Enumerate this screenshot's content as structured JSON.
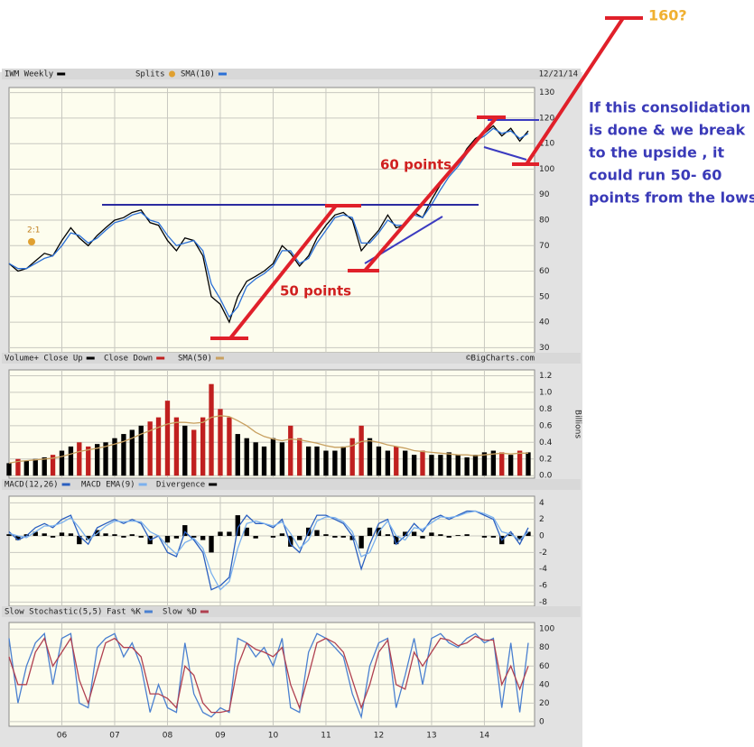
{
  "chart_data": [
    {
      "type": "line",
      "title": "IWM Weekly",
      "splits_label": "Splits",
      "split_marker": "2:1",
      "date_label": "12/21/14",
      "x": [
        2005,
        2005.17,
        2005.33,
        2005.5,
        2005.67,
        2005.83,
        2006,
        2006.17,
        2006.33,
        2006.5,
        2006.67,
        2006.83,
        2007,
        2007.17,
        2007.33,
        2007.5,
        2007.67,
        2007.83,
        2008,
        2008.17,
        2008.33,
        2008.5,
        2008.67,
        2008.83,
        2009,
        2009.17,
        2009.33,
        2009.5,
        2009.67,
        2009.83,
        2010,
        2010.17,
        2010.33,
        2010.5,
        2010.67,
        2010.83,
        2011,
        2011.17,
        2011.33,
        2011.5,
        2011.67,
        2011.83,
        2012,
        2012.17,
        2012.33,
        2012.5,
        2012.67,
        2012.83,
        2013,
        2013.17,
        2013.33,
        2013.5,
        2013.67,
        2013.83,
        2014,
        2014.17,
        2014.33,
        2014.5,
        2014.67,
        2014.83
      ],
      "series": [
        {
          "name": "IWM Weekly",
          "color": "#000000",
          "values": [
            63,
            60,
            61,
            64,
            67,
            66,
            72,
            77,
            73,
            70,
            74,
            77,
            80,
            81,
            83,
            84,
            79,
            78,
            72,
            68,
            73,
            72,
            66,
            50,
            47,
            40,
            50,
            56,
            58,
            60,
            63,
            70,
            67,
            62,
            66,
            73,
            78,
            82,
            83,
            80,
            68,
            72,
            76,
            82,
            77,
            78,
            83,
            81,
            88,
            94,
            98,
            102,
            108,
            112,
            114,
            117,
            113,
            116,
            111,
            115
          ]
        },
        {
          "name": "SMA(10)",
          "color": "#2a6fd6",
          "values": [
            63,
            61,
            61,
            63,
            65,
            66,
            70,
            75,
            74,
            71,
            73,
            76,
            79,
            80,
            82,
            83,
            80,
            79,
            74,
            70,
            71,
            72,
            68,
            55,
            49,
            42,
            46,
            54,
            57,
            59,
            62,
            68,
            68,
            63,
            65,
            71,
            76,
            81,
            82,
            81,
            71,
            71,
            75,
            80,
            78,
            78,
            82,
            81,
            86,
            92,
            97,
            101,
            106,
            111,
            113,
            116,
            114,
            115,
            112,
            114
          ]
        }
      ],
      "ylim": [
        28,
        132
      ],
      "yticks": [
        30,
        40,
        50,
        60,
        70,
        80,
        90,
        100,
        110,
        120,
        130
      ],
      "grid": true
    },
    {
      "type": "bar",
      "credit": "©BigCharts.com",
      "y_label": "Billions",
      "x": [
        2005,
        2005.17,
        2005.33,
        2005.5,
        2005.67,
        2005.83,
        2006,
        2006.17,
        2006.33,
        2006.5,
        2006.67,
        2006.83,
        2007,
        2007.17,
        2007.33,
        2007.5,
        2007.67,
        2007.83,
        2008,
        2008.17,
        2008.33,
        2008.5,
        2008.67,
        2008.83,
        2009,
        2009.17,
        2009.33,
        2009.5,
        2009.67,
        2009.83,
        2010,
        2010.17,
        2010.33,
        2010.5,
        2010.67,
        2010.83,
        2011,
        2011.17,
        2011.33,
        2011.5,
        2011.67,
        2011.83,
        2012,
        2012.17,
        2012.33,
        2012.5,
        2012.67,
        2012.83,
        2013,
        2013.17,
        2013.33,
        2013.5,
        2013.67,
        2013.83,
        2014,
        2014.17,
        2014.33,
        2014.5,
        2014.67,
        2014.83
      ],
      "series": [
        {
          "name": "Volume+ Close Up",
          "color": "#000000",
          "type": "bar",
          "values": [
            0.15,
            null,
            0.18,
            0.2,
            0.22,
            null,
            0.3,
            0.35,
            null,
            null,
            0.38,
            0.4,
            0.45,
            0.5,
            0.55,
            0.6,
            null,
            null,
            null,
            null,
            0.6,
            null,
            null,
            null,
            null,
            null,
            0.5,
            0.45,
            0.4,
            0.35,
            0.45,
            0.4,
            null,
            null,
            0.35,
            0.35,
            0.3,
            0.3,
            0.35,
            null,
            null,
            0.45,
            0.35,
            0.3,
            null,
            0.3,
            0.25,
            null,
            0.25,
            0.25,
            0.28,
            0.25,
            0.22,
            0.25,
            0.28,
            0.3,
            null,
            0.25,
            null,
            0.28
          ]
        },
        {
          "name": "Close Down",
          "color": "#c0201f",
          "type": "bar",
          "values": [
            null,
            0.2,
            null,
            null,
            null,
            0.25,
            null,
            null,
            0.4,
            0.35,
            null,
            null,
            null,
            null,
            null,
            null,
            0.65,
            0.7,
            0.9,
            0.7,
            null,
            0.55,
            0.7,
            1.1,
            0.8,
            0.7,
            null,
            null,
            null,
            null,
            null,
            null,
            0.6,
            0.45,
            null,
            null,
            null,
            null,
            null,
            0.45,
            0.6,
            null,
            null,
            null,
            0.35,
            null,
            null,
            0.3,
            null,
            null,
            null,
            null,
            null,
            null,
            null,
            null,
            0.28,
            null,
            0.3,
            null
          ]
        },
        {
          "name": "SMA(50)",
          "color": "#c8a060",
          "type": "line",
          "values": [
            0.15,
            0.17,
            0.18,
            0.19,
            0.2,
            0.21,
            0.23,
            0.26,
            0.29,
            0.31,
            0.33,
            0.35,
            0.38,
            0.41,
            0.45,
            0.5,
            0.54,
            0.58,
            0.62,
            0.64,
            0.64,
            0.63,
            0.64,
            0.7,
            0.72,
            0.71,
            0.66,
            0.6,
            0.52,
            0.47,
            0.44,
            0.42,
            0.44,
            0.43,
            0.41,
            0.39,
            0.36,
            0.34,
            0.34,
            0.36,
            0.41,
            0.42,
            0.4,
            0.37,
            0.35,
            0.33,
            0.3,
            0.29,
            0.28,
            0.27,
            0.26,
            0.25,
            0.25,
            0.24,
            0.25,
            0.26,
            0.27,
            0.26,
            0.27,
            0.27
          ]
        }
      ],
      "ylim": [
        -0.03,
        1.27
      ],
      "yticks": [
        {
          "value": 0,
          "label": "0.0"
        },
        0.2,
        0.4,
        0.6,
        0.8,
        {
          "value": 1,
          "label": "1.0"
        },
        1.2
      ],
      "grid": true
    },
    {
      "type": "line",
      "x": [
        2005,
        2005.17,
        2005.33,
        2005.5,
        2005.67,
        2005.83,
        2006,
        2006.17,
        2006.33,
        2006.5,
        2006.67,
        2006.83,
        2007,
        2007.17,
        2007.33,
        2007.5,
        2007.67,
        2007.83,
        2008,
        2008.17,
        2008.33,
        2008.5,
        2008.67,
        2008.83,
        2009,
        2009.17,
        2009.33,
        2009.5,
        2009.67,
        2009.83,
        2010,
        2010.17,
        2010.33,
        2010.5,
        2010.67,
        2010.83,
        2011,
        2011.17,
        2011.33,
        2011.5,
        2011.67,
        2011.83,
        2012,
        2012.17,
        2012.33,
        2012.5,
        2012.67,
        2012.83,
        2013,
        2013.17,
        2013.33,
        2013.5,
        2013.67,
        2013.83,
        2014,
        2014.17,
        2014.33,
        2014.5,
        2014.67,
        2014.83
      ],
      "series": [
        {
          "name": "MACD(12,26)",
          "color": "#2a5fc0",
          "type": "line",
          "values": [
            0.5,
            -0.5,
            0,
            1,
            1.5,
            1,
            2,
            2.5,
            0,
            -1,
            1,
            1.5,
            2,
            1.5,
            2,
            1.5,
            -0.5,
            0,
            -2,
            -2.5,
            0.5,
            -0.5,
            -2,
            -6.5,
            -6,
            -5,
            1,
            2.5,
            1.5,
            1.5,
            1,
            2,
            -1,
            -2,
            0.5,
            2.5,
            2.5,
            2,
            1.5,
            0,
            -4,
            -1,
            1.5,
            2,
            -1,
            0,
            1.5,
            0.5,
            2,
            2.5,
            2,
            2.5,
            3,
            3,
            2.5,
            2,
            -0.5,
            0.5,
            -1,
            1
          ]
        },
        {
          "name": "MACD EMA(9)",
          "color": "#7ab0ee",
          "type": "line",
          "values": [
            0.3,
            0,
            -0.2,
            0.5,
            1.2,
            1.2,
            1.6,
            2.2,
            1,
            -0.5,
            0.3,
            1.2,
            1.8,
            1.7,
            1.8,
            1.7,
            0.5,
            0,
            -1.2,
            -2.2,
            -0.8,
            -0.3,
            -1.5,
            -4.5,
            -6.5,
            -5.5,
            -1.5,
            1.5,
            1.8,
            1.5,
            1.2,
            1.7,
            0.3,
            -1.5,
            -0.5,
            1.8,
            2.3,
            2.2,
            1.7,
            0.5,
            -2.5,
            -2,
            0.5,
            1.8,
            0,
            -0.5,
            1,
            0.8,
            1.6,
            2.3,
            2.2,
            2.4,
            2.8,
            3,
            2.7,
            2.2,
            0.5,
            0.2,
            -0.5,
            0.5
          ]
        },
        {
          "name": "Divergence",
          "color": "#000000",
          "type": "bar",
          "values": [
            0.2,
            -0.5,
            0.2,
            0.5,
            0.3,
            -0.2,
            0.4,
            0.3,
            -1,
            -0.5,
            0.7,
            0.3,
            0.2,
            -0.2,
            0.2,
            -0.2,
            -1,
            0,
            -0.8,
            -0.3,
            1.3,
            -0.2,
            -0.5,
            -2,
            0.5,
            0.5,
            2.5,
            1,
            -0.3,
            0,
            -0.2,
            0.3,
            -1.3,
            -0.5,
            1,
            0.7,
            0.2,
            -0.2,
            -0.2,
            -0.5,
            -1.5,
            1,
            1,
            0.2,
            -1,
            0.5,
            0.5,
            -0.3,
            0.4,
            0.2,
            -0.2,
            0.1,
            0.2,
            0,
            -0.2,
            -0.2,
            -1,
            0.3,
            -0.5,
            0.5
          ]
        }
      ],
      "ylim": [
        -8.5,
        4.8
      ],
      "yticks": [
        -8,
        -6,
        -4,
        -2,
        0,
        2,
        4
      ],
      "grid": true
    },
    {
      "type": "line",
      "title": "Slow Stochastic(5,5)",
      "x": [
        2005,
        2005.17,
        2005.33,
        2005.5,
        2005.67,
        2005.83,
        2006,
        2006.17,
        2006.33,
        2006.5,
        2006.67,
        2006.83,
        2007,
        2007.17,
        2007.33,
        2007.5,
        2007.67,
        2007.83,
        2008,
        2008.17,
        2008.33,
        2008.5,
        2008.67,
        2008.83,
        2009,
        2009.17,
        2009.33,
        2009.5,
        2009.67,
        2009.83,
        2010,
        2010.17,
        2010.33,
        2010.5,
        2010.67,
        2010.83,
        2011,
        2011.17,
        2011.33,
        2011.5,
        2011.67,
        2011.83,
        2012,
        2012.17,
        2012.33,
        2012.5,
        2012.67,
        2012.83,
        2013,
        2013.17,
        2013.33,
        2013.5,
        2013.67,
        2013.83,
        2014,
        2014.17,
        2014.33,
        2014.5,
        2014.67,
        2014.83
      ],
      "series": [
        {
          "name": "Fast %K",
          "color": "#4a80d0",
          "type": "line",
          "values": [
            90,
            20,
            60,
            85,
            95,
            40,
            90,
            95,
            20,
            15,
            80,
            90,
            95,
            70,
            85,
            60,
            10,
            40,
            15,
            10,
            85,
            30,
            10,
            5,
            15,
            10,
            90,
            85,
            70,
            80,
            60,
            90,
            15,
            10,
            75,
            95,
            90,
            80,
            70,
            30,
            5,
            60,
            85,
            90,
            15,
            50,
            90,
            40,
            90,
            95,
            85,
            80,
            90,
            95,
            85,
            90,
            15,
            85,
            10,
            85
          ]
        },
        {
          "name": "Slow %D",
          "color": "#b04050",
          "type": "line",
          "values": [
            70,
            40,
            40,
            75,
            90,
            60,
            75,
            90,
            45,
            20,
            55,
            85,
            90,
            80,
            80,
            70,
            30,
            30,
            25,
            15,
            60,
            50,
            20,
            10,
            10,
            12,
            60,
            85,
            78,
            75,
            70,
            80,
            40,
            15,
            50,
            85,
            90,
            85,
            75,
            45,
            15,
            40,
            75,
            88,
            40,
            35,
            75,
            60,
            75,
            90,
            88,
            82,
            85,
            92,
            88,
            88,
            40,
            60,
            35,
            60
          ]
        }
      ],
      "ylim": [
        -5,
        107
      ],
      "yticks": [
        0,
        20,
        40,
        60,
        80,
        100
      ],
      "grid": true,
      "xlim": [
        2005,
        2014.95
      ],
      "xticks": [
        {
          "value": 2006,
          "label": "06"
        },
        {
          "value": 2007,
          "label": "07"
        },
        {
          "value": 2008,
          "label": "08"
        },
        {
          "value": 2009,
          "label": "09"
        },
        {
          "value": 2010,
          "label": "10"
        },
        {
          "value": 2011,
          "label": "11"
        },
        {
          "value": 2012,
          "label": "12"
        },
        {
          "value": 2013,
          "label": "13"
        },
        {
          "value": 2014,
          "label": "14"
        }
      ]
    }
  ],
  "annotations": {
    "target": "160?",
    "note": [
      "If this consolidation",
      "is done & we break",
      "to the upside , it",
      "could run  50- 60",
      "points from the lows"
    ],
    "labels": [
      "50 points",
      "60 points"
    ]
  }
}
